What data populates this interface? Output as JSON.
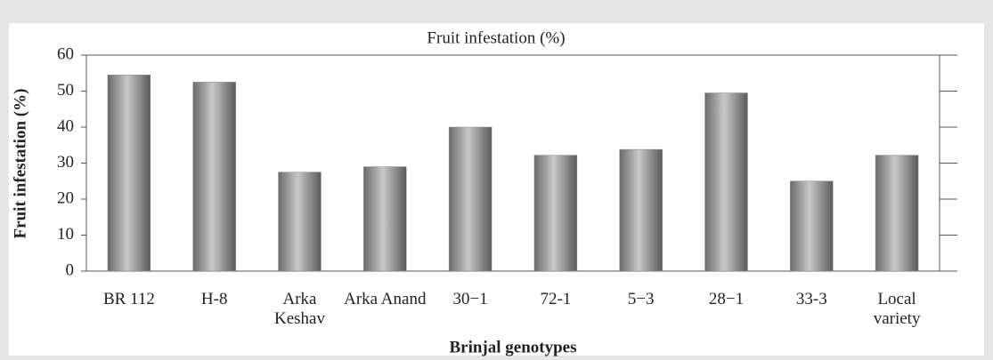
{
  "chart_data": {
    "type": "bar",
    "title": "Fruit infestation (%)",
    "y_label": "Fruit infestation (%)",
    "x_label": "Brinjal genotypes",
    "categories": [
      "BR 112",
      "H-8",
      "Arka Keshav",
      "Arka Anand",
      "30−1",
      "72-1",
      "5−3",
      "28−1",
      "33-3",
      "Local variety"
    ],
    "values": [
      54.5,
      52.5,
      27.5,
      29,
      40,
      32.2,
      33.8,
      49.5,
      25,
      32.2
    ],
    "color": "#8a8a8a",
    "ylim": [
      0,
      60
    ],
    "yticks": [
      0,
      10,
      20,
      30,
      40,
      50,
      60
    ],
    "grid": false
  }
}
